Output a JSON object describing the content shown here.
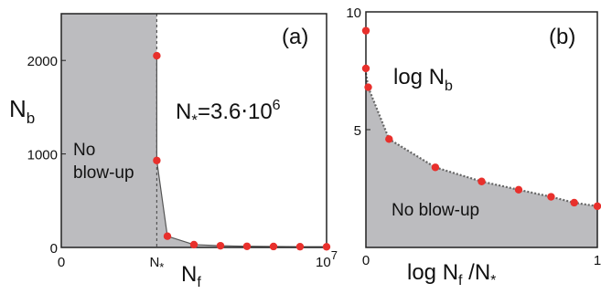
{
  "chart_data": [
    {
      "type": "area",
      "panel_label": "(a)",
      "xlabel": "N",
      "xlabel_sub": "f",
      "ylabel": "N",
      "ylabel_sub": "b",
      "xlim": [
        0,
        10000000
      ],
      "ylim": [
        0,
        2500
      ],
      "x_ticks": [
        {
          "value": 0,
          "label": "0"
        },
        {
          "value": 3600000,
          "label": "N",
          "sub": "*"
        },
        {
          "value": 10000000,
          "label": "10",
          "sup": "7"
        }
      ],
      "y_ticks": [
        {
          "value": 0,
          "label": "0"
        },
        {
          "value": 1000,
          "label": "1000"
        },
        {
          "value": 2000,
          "label": "2000"
        }
      ],
      "vline": {
        "x": 3600000,
        "style": "dashed"
      },
      "annotation": {
        "base": "N",
        "sub": "*",
        "rest": "=3.6⋅10",
        "sup": "6"
      },
      "region_label": [
        "No",
        "blow-up"
      ],
      "series": [
        {
          "x": [
            3600000,
            3600000,
            4000000,
            5000000,
            6000000,
            7000000,
            8000000,
            9000000,
            10000000
          ],
          "y": [
            2050,
            930,
            120,
            30,
            18,
            12,
            10,
            8,
            7
          ]
        }
      ],
      "colors": {
        "fill": "#bcbcbf",
        "points": "#e8302c",
        "line": "#555555"
      }
    },
    {
      "type": "area",
      "panel_label": "(b)",
      "xlabel": "log N",
      "xlabel_sub": "f",
      "xlabel_rest": " /N",
      "xlabel_sub2": "*",
      "title_in_plot": "log N",
      "title_in_plot_sub": "b",
      "xlim": [
        0,
        1
      ],
      "ylim": [
        0,
        10
      ],
      "x_ticks": [
        {
          "value": 0,
          "label": "0"
        },
        {
          "value": 1,
          "label": "1"
        }
      ],
      "y_ticks": [
        {
          "value": 5,
          "label": "5"
        },
        {
          "value": 10,
          "label": "10"
        }
      ],
      "region_label": "No blow-up",
      "series": [
        {
          "x": [
            0.0,
            0.0,
            0.01,
            0.1,
            0.3,
            0.5,
            0.66,
            0.8,
            0.9,
            1.0
          ],
          "y": [
            9.2,
            7.6,
            6.8,
            4.6,
            3.4,
            2.8,
            2.45,
            2.15,
            1.9,
            1.75
          ]
        }
      ],
      "colors": {
        "fill": "#bcbcbf",
        "points": "#e8302c",
        "line": "#555555"
      }
    }
  ]
}
